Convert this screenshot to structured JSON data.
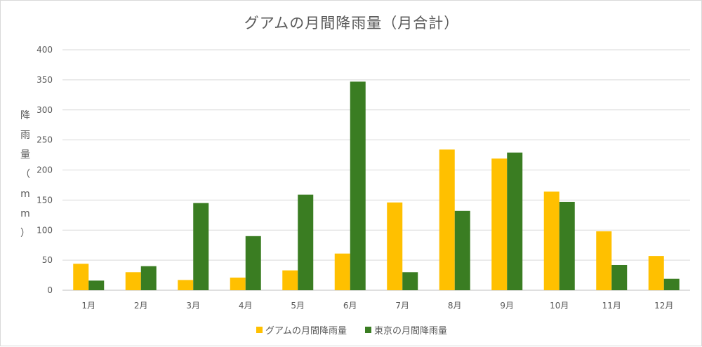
{
  "chart_data": {
    "type": "bar",
    "title": "グアムの月間降雨量（月合計）",
    "ylabel": "降雨量（mm）",
    "xlabel": "",
    "categories": [
      "1月",
      "2月",
      "3月",
      "4月",
      "5月",
      "6月",
      "7月",
      "8月",
      "9月",
      "10月",
      "11月",
      "12月"
    ],
    "series": [
      {
        "name": "グアムの月間降雨量",
        "color": "#ffc000",
        "values": [
          44,
          30,
          17,
          21,
          33,
          61,
          146,
          234,
          219,
          164,
          98,
          57
        ]
      },
      {
        "name": "東京の月間降雨量",
        "color": "#3a7d22",
        "values": [
          16,
          40,
          145,
          90,
          159,
          347,
          30,
          132,
          229,
          147,
          42,
          19
        ]
      }
    ],
    "ylim": [
      0,
      400
    ],
    "yticks": [
      0,
      50,
      100,
      150,
      200,
      250,
      300,
      350,
      400
    ],
    "grid": true,
    "legend_position": "bottom"
  }
}
